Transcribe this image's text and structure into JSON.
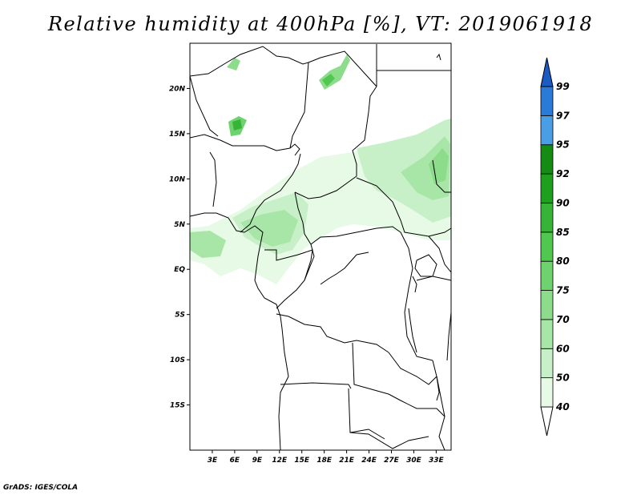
{
  "title": "Relative humidity at 400hPa [%], VT: 2019061918",
  "credit": "GrADS: IGES/COLA",
  "map": {
    "lon_range": [
      0,
      35
    ],
    "lat_range": [
      -20,
      25
    ],
    "x_ticks": [
      {
        "value": 3,
        "label": "3E"
      },
      {
        "value": 6,
        "label": "6E"
      },
      {
        "value": 9,
        "label": "9E"
      },
      {
        "value": 12,
        "label": "12E"
      },
      {
        "value": 15,
        "label": "15E"
      },
      {
        "value": 18,
        "label": "18E"
      },
      {
        "value": 21,
        "label": "21E"
      },
      {
        "value": 24,
        "label": "24E"
      },
      {
        "value": 27,
        "label": "27E"
      },
      {
        "value": 30,
        "label": "30E"
      },
      {
        "value": 33,
        "label": "33E"
      }
    ],
    "y_ticks": [
      {
        "value": 20,
        "label": "20N"
      },
      {
        "value": 15,
        "label": "15N"
      },
      {
        "value": 10,
        "label": "10N"
      },
      {
        "value": 5,
        "label": "5N"
      },
      {
        "value": 0,
        "label": "EQ"
      },
      {
        "value": -5,
        "label": "5S"
      },
      {
        "value": -10,
        "label": "10S"
      },
      {
        "value": -15,
        "label": "15S"
      }
    ]
  },
  "colorbar": {
    "levels": [
      "40",
      "50",
      "60",
      "70",
      "75",
      "80",
      "85",
      "90",
      "92",
      "95",
      "97",
      "99"
    ],
    "colors": [
      "#e6fae6",
      "#c8f0c8",
      "#a8e6a8",
      "#8cdc8c",
      "#6ed26e",
      "#50c850",
      "#37b437",
      "#1ea01e",
      "#148c14",
      "#4a9ee6",
      "#2a7ad8",
      "#1a5cc4"
    ]
  }
}
